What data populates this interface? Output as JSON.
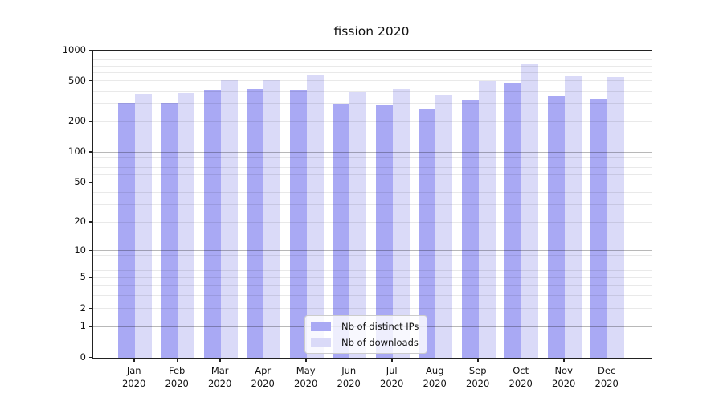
{
  "title": "fission 2020",
  "colors": {
    "ips_bar": "#a9a9f4",
    "downloads_bar": "#dadaf8",
    "axis": "#222222",
    "text": "#111111"
  },
  "legend": {
    "items": [
      {
        "label": "Nb of distinct IPs",
        "color_key": "ips_bar"
      },
      {
        "label": "Nb of downloads",
        "color_key": "downloads_bar"
      }
    ]
  },
  "chart_data": {
    "type": "bar",
    "title": "fission 2020",
    "categories": [
      "Jan 2020",
      "Feb 2020",
      "Mar 2020",
      "Apr 2020",
      "May 2020",
      "Jun 2020",
      "Jul 2020",
      "Aug 2020",
      "Sep 2020",
      "Oct 2020",
      "Nov 2020",
      "Dec 2020"
    ],
    "x_tick_months": [
      "Jan",
      "Feb",
      "Mar",
      "Apr",
      "May",
      "Jun",
      "Jul",
      "Aug",
      "Sep",
      "Oct",
      "Nov",
      "Dec"
    ],
    "x_tick_year": "2020",
    "series": [
      {
        "name": "Nb of distinct IPs",
        "key": "ips",
        "color_key": "ips_bar",
        "values": [
          310,
          307,
          413,
          420,
          410,
          305,
          295,
          270,
          333,
          488,
          362,
          340
        ]
      },
      {
        "name": "Nb of downloads",
        "key": "downloads",
        "color_key": "downloads_bar",
        "values": [
          378,
          382,
          512,
          521,
          585,
          396,
          421,
          372,
          506,
          750,
          568,
          551
        ]
      }
    ],
    "y_scale": "log1p",
    "y_ticks": [
      0,
      1,
      2,
      5,
      10,
      20,
      50,
      100,
      200,
      500,
      1000
    ],
    "y_major_gridlines": [
      1,
      10,
      100
    ],
    "ylim": [
      0,
      1000
    ],
    "grid": true,
    "legend_position": "lower center"
  }
}
